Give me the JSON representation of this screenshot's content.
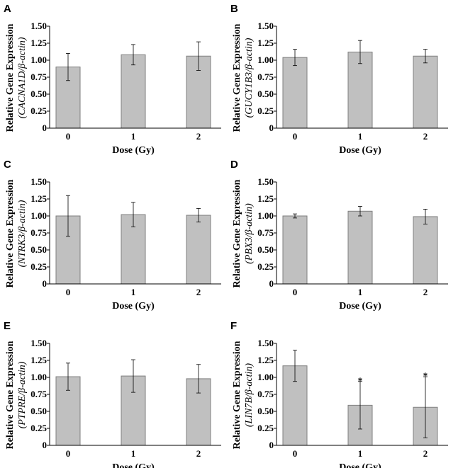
{
  "style": {
    "bar_fill": "#c0c0c0",
    "bar_stroke": "#7f7f7f",
    "axis_color": "#000000"
  },
  "chart_data": [
    {
      "panel": "A",
      "type": "bar",
      "categories": [
        "0",
        "1",
        "2"
      ],
      "values": [
        0.9,
        1.08,
        1.06
      ],
      "errors": [
        0.2,
        0.15,
        0.21
      ],
      "significance": [
        "",
        "",
        ""
      ],
      "ylim": [
        0,
        1.5
      ],
      "yticks": [
        "0",
        "0.25",
        "0.50",
        "0.75",
        "1.00",
        "1.25",
        "1.50"
      ],
      "xlabel": "Dose (Gy)",
      "ylabel": "Relative Gene Expression",
      "ylabel_sub": "(CACNA1D/β-actin)"
    },
    {
      "panel": "B",
      "type": "bar",
      "categories": [
        "0",
        "1",
        "2"
      ],
      "values": [
        1.04,
        1.12,
        1.06
      ],
      "errors": [
        0.12,
        0.17,
        0.1
      ],
      "significance": [
        "",
        "",
        ""
      ],
      "ylim": [
        0,
        1.5
      ],
      "yticks": [
        "0",
        "0.25",
        "0.50",
        "0.75",
        "1.00",
        "1.25",
        "1.50"
      ],
      "xlabel": "Dose (Gy)",
      "ylabel": "Relative Gene Expression",
      "ylabel_sub": "(GUCY1B3/β-actin)"
    },
    {
      "panel": "C",
      "type": "bar",
      "categories": [
        "0",
        "1",
        "2"
      ],
      "values": [
        1.0,
        1.02,
        1.01
      ],
      "errors": [
        0.3,
        0.18,
        0.1
      ],
      "significance": [
        "",
        "",
        ""
      ],
      "ylim": [
        0,
        1.5
      ],
      "yticks": [
        "0",
        "0.25",
        "0.50",
        "0.75",
        "1.00",
        "1.25",
        "1.50"
      ],
      "xlabel": "Dose (Gy)",
      "ylabel": "Relative Gene Expression",
      "ylabel_sub": "(NTRK3/β-actin)"
    },
    {
      "panel": "D",
      "type": "bar",
      "categories": [
        "0",
        "1",
        "2"
      ],
      "values": [
        1.0,
        1.07,
        0.99
      ],
      "errors": [
        0.03,
        0.07,
        0.11
      ],
      "significance": [
        "",
        "",
        ""
      ],
      "ylim": [
        0,
        1.5
      ],
      "yticks": [
        "0",
        "0.25",
        "0.50",
        "0.75",
        "1.00",
        "1.25",
        "1.50"
      ],
      "xlabel": "Dose (Gy)",
      "ylabel": "Relative Gene Expression",
      "ylabel_sub": "(PBX3/β-actin)"
    },
    {
      "panel": "E",
      "type": "bar",
      "categories": [
        "0",
        "1",
        "2"
      ],
      "values": [
        1.01,
        1.02,
        0.98
      ],
      "errors": [
        0.2,
        0.24,
        0.21
      ],
      "significance": [
        "",
        "",
        ""
      ],
      "ylim": [
        0,
        1.5
      ],
      "yticks": [
        "0",
        "0.25",
        "0.50",
        "0.75",
        "1.00",
        "1.25",
        "1.50"
      ],
      "xlabel": "Dose (Gy)",
      "ylabel": "Relative Gene Expression",
      "ylabel_sub": "(PTPRE/β-actin)"
    },
    {
      "panel": "F",
      "type": "bar",
      "categories": [
        "0",
        "1",
        "2"
      ],
      "values": [
        1.17,
        0.59,
        0.56
      ],
      "errors": [
        0.23,
        0.35,
        0.45
      ],
      "significance": [
        "",
        "*",
        "*"
      ],
      "ylim": [
        0,
        1.5
      ],
      "yticks": [
        "0",
        "0.25",
        "0.50",
        "0.75",
        "1.00",
        "1.25",
        "1.50"
      ],
      "xlabel": "Dose (Gy)",
      "ylabel": "Relative Gene Expression",
      "ylabel_sub": "(LIN7B/β-actin)"
    }
  ]
}
